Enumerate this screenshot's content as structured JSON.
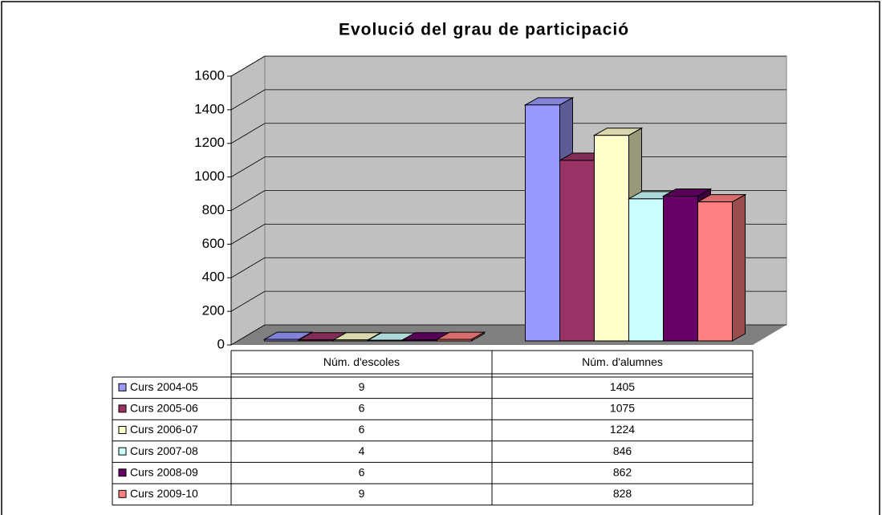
{
  "chart_data": {
    "type": "bar3d",
    "title": "Evolució del grau de participació",
    "categories": [
      "Núm. d'escoles",
      "Núm. d'alumnes"
    ],
    "series": [
      {
        "name": "Curs 2004-05",
        "color": "#9999ff",
        "values": [
          9,
          1405
        ]
      },
      {
        "name": "Curs 2005-06",
        "color": "#993366",
        "values": [
          6,
          1075
        ]
      },
      {
        "name": "Curs 2006-07",
        "color": "#ffffcc",
        "values": [
          6,
          1224
        ]
      },
      {
        "name": "Curs 2007-08",
        "color": "#ccffff",
        "values": [
          4,
          846
        ]
      },
      {
        "name": "Curs 2008-09",
        "color": "#660066",
        "values": [
          6,
          862
        ]
      },
      {
        "name": "Curs 2009-10",
        "color": "#ff8080",
        "values": [
          9,
          828
        ]
      }
    ],
    "ylim": [
      0,
      1600
    ],
    "yticks": [
      0,
      200,
      400,
      600,
      800,
      1000,
      1200,
      1400,
      1600
    ],
    "grid": true,
    "data_table": true
  }
}
